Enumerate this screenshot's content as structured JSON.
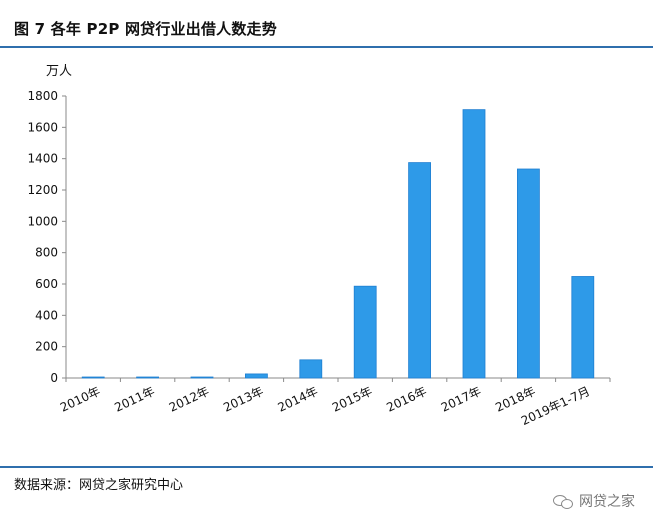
{
  "title": "图 7  各年 P2P 网贷行业出借人数走势",
  "unit": "万人",
  "source": "数据来源：网贷之家研究中心",
  "watermark": "网贷之家",
  "icon": "wechat-icon",
  "colors": {
    "bar": "#2e9ae8",
    "bar_edge": "#1f7fd1",
    "axis": "#8a8a8a",
    "rule": "#2f6fad"
  },
  "chart_data": {
    "type": "bar",
    "categories": [
      "2010年",
      "2011年",
      "2012年",
      "2013年",
      "2014年",
      "2015年",
      "2016年",
      "2017年",
      "2018年",
      "2019年1-7月"
    ],
    "values": [
      2,
      3,
      3,
      26,
      116,
      586,
      1375,
      1713,
      1334,
      648
    ],
    "ylim": [
      0,
      1800
    ],
    "yticks": [
      0,
      200,
      400,
      600,
      800,
      1000,
      1200,
      1400,
      1600,
      1800
    ],
    "ylabel": "万人",
    "grid": false
  }
}
